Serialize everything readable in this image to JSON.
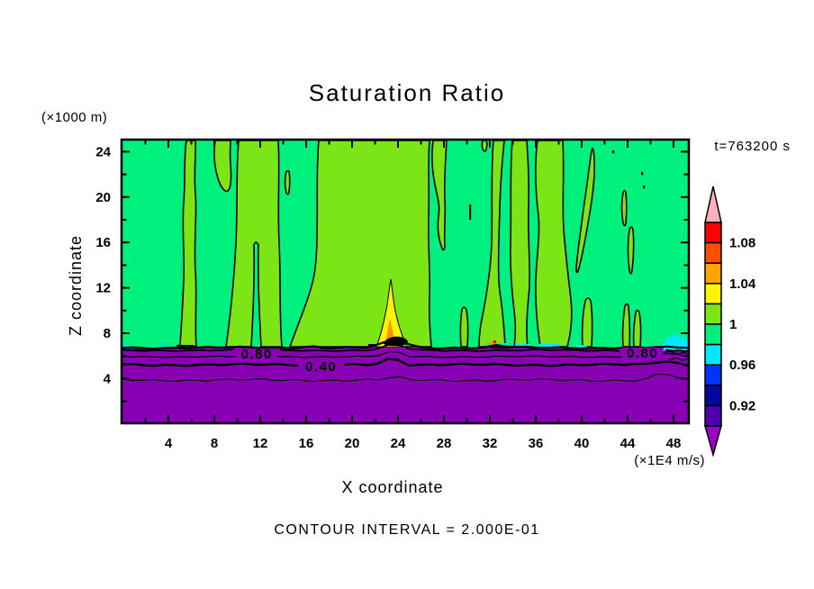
{
  "title": "Saturation Ratio",
  "time_label": "t=763200 s",
  "footer": {
    "contour_interval_label": "CONTOUR INTERVAL = 2.000E-01"
  },
  "axes": {
    "x": {
      "label": "X coordinate",
      "unit_label": "(×1E4 m/s)",
      "major_ticks": [
        4,
        8,
        12,
        16,
        20,
        24,
        28,
        32,
        36,
        40,
        44,
        48
      ],
      "minor_ticks": [
        2,
        6,
        10,
        14,
        18,
        22,
        26,
        30,
        34,
        38,
        42,
        46
      ]
    },
    "y": {
      "label": "Z coordinate",
      "unit_label": "(×1000 m)",
      "major_ticks": [
        4,
        8,
        12,
        16,
        20,
        24
      ],
      "minor_ticks": [
        2,
        6,
        10,
        14,
        18,
        22
      ]
    }
  },
  "colorbar": {
    "tick_labels": [
      "1.08",
      "1.04",
      "1",
      "0.96",
      "0.92"
    ],
    "level_boundaries": [
      0.9,
      0.92,
      0.94,
      0.96,
      0.98,
      1.0,
      1.02,
      1.04,
      1.06,
      1.08,
      1.1
    ],
    "segment_colors_top_to_bottom": [
      "#FB0007",
      "#FD4E00",
      "#FFA400",
      "#FFF400",
      "#7CE516",
      "#00F07E",
      "#00E8FF",
      "#0233F9",
      "#0707A0",
      "#4F00AC"
    ],
    "over_arrow_color": "#FFB2BE",
    "under_arrow_color": "#9C00C2"
  },
  "palette": {
    "spring_green": "#00F07E",
    "yellow_green": "#7CE516",
    "purple_under": "#8800B4",
    "yellow": "#FFF400",
    "orange": "#FF9100",
    "red": "#FB0007",
    "cyan": "#00E8FF",
    "blue": "#0233F9",
    "navy": "#0707A0",
    "black": "#000000",
    "frame": "#000000",
    "background": "#FFFFFF"
  },
  "contour_labels": [
    {
      "text": "0.80",
      "x": 11.7,
      "z": 6.2
    },
    {
      "text": "0.40",
      "x": 17.3,
      "z": 5.1
    },
    {
      "text": "0.80",
      "x": 45.3,
      "z": 6.3
    }
  ],
  "line_contours": [
    {
      "value": 0.8,
      "z": 6.49
    },
    {
      "value": 0.6,
      "z": 5.94
    },
    {
      "value": 0.4,
      "z": 5.22
    },
    {
      "value": 0.2,
      "z": 3.87
    }
  ],
  "chart_data": {
    "type": "heatmap",
    "variant": "filled_contour",
    "title": "Saturation Ratio",
    "xlabel": "X coordinate",
    "x_units": "×1E4 m/s",
    "ylabel": "Z coordinate",
    "y_units": "×1000 m",
    "xlim": [
      0,
      49.4
    ],
    "ylim": [
      0,
      25
    ],
    "x_ticks": [
      4,
      8,
      12,
      16,
      20,
      24,
      28,
      32,
      36,
      40,
      44,
      48
    ],
    "y_ticks": [
      4,
      8,
      12,
      16,
      20,
      24
    ],
    "grid": false,
    "legend_position": "right-colorbar",
    "time_annotation": "t=763200 s",
    "contour_interval": 0.2,
    "colorbar_tick_values": [
      1.08,
      1.04,
      1.0,
      0.96,
      0.92
    ],
    "fill_level_boundaries": [
      0.9,
      0.92,
      0.94,
      0.96,
      0.98,
      1.0,
      1.02,
      1.04,
      1.06,
      1.08,
      1.1
    ],
    "labeled_line_contours": [
      {
        "value": 0.8,
        "z_approx": 6.5
      },
      {
        "value": 0.6,
        "z_approx": 5.9
      },
      {
        "value": 0.4,
        "z_approx": 5.2
      },
      {
        "value": 0.2,
        "z_approx": 3.9
      }
    ],
    "field_summary": [
      "Saturation ratio 0.98-1.00 (spring green) fills most of the domain above z = 6.8 (×1000 m)",
      "Vertical bands of ratio 1.00-1.02 (yellow-green) near x = 5.4, 7.8, 10-14, 17-27, 30.5-33.3, 33.7-35.5, 35.7-39.3, 39.8-41, 43.5-45 (×1E4 m)",
      "Sharp drop through 0.96 and 0.92 in a thin layer at z = 6.6-6.9",
      "Ratio below 0.90 (purple) everywhere under z = 6.5, with line contours 0.80, 0.60, 0.40, 0.20 at z = 6.5, 5.9, 5.2, 3.9",
      "Narrow plume at x = 23.3 reaching ratios 1.02-1.08 (yellow-orange core) between z = 6.7 and 12.7"
    ]
  }
}
